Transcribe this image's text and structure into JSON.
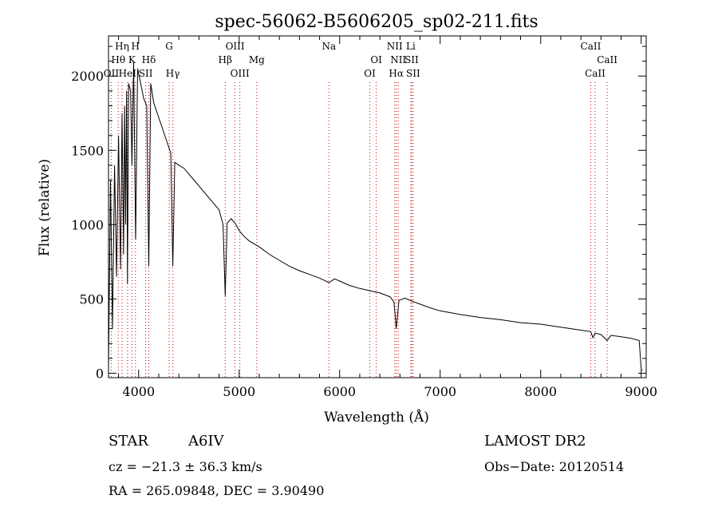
{
  "chart_data": {
    "type": "line",
    "title": "spec-56062-B5606205_sp02-211.fits",
    "xlabel": "Wavelength (Å)",
    "ylabel": "Flux (relative)",
    "xlim": [
      3700,
      9050
    ],
    "ylim": [
      -30,
      2270
    ],
    "xticks": [
      4000,
      5000,
      6000,
      7000,
      8000,
      9000
    ],
    "yticks": [
      0,
      500,
      1000,
      1500,
      2000
    ],
    "grid": false,
    "legend": "none",
    "line_color": "#000000",
    "marker_color": "#cc0000",
    "series": [
      {
        "x": [
          3700,
          3720,
          3740,
          3760,
          3780,
          3800,
          3820,
          3835,
          3850,
          3860,
          3870,
          3880,
          3889,
          3900,
          3920,
          3933,
          3950,
          3970,
          3990,
          4020,
          4050,
          4080,
          4101,
          4120,
          4150,
          4180,
          4210,
          4250,
          4280,
          4320,
          4340,
          4360,
          4400,
          4450,
          4500,
          4550,
          4600,
          4650,
          4700,
          4750,
          4800,
          4840,
          4861,
          4880,
          4920,
          4960,
          5000,
          5050,
          5100,
          5200,
          5300,
          5400,
          5500,
          5600,
          5700,
          5800,
          5893,
          5950,
          6000,
          6100,
          6200,
          6300,
          6400,
          6500,
          6540,
          6563,
          6590,
          6650,
          6700,
          6800,
          6900,
          7000,
          7200,
          7400,
          7600,
          7800,
          8000,
          8200,
          8400,
          8498,
          8520,
          8542,
          8600,
          8662,
          8700,
          8800,
          8900,
          8980,
          9000,
          9010
        ],
        "y": [
          40,
          1300,
          300,
          1400,
          650,
          1600,
          700,
          1750,
          800,
          1800,
          1000,
          1900,
          600,
          1950,
          1900,
          1400,
          2100,
          900,
          2050,
          1950,
          1850,
          1800,
          720,
          1950,
          1820,
          1760,
          1700,
          1620,
          1560,
          1480,
          720,
          1420,
          1400,
          1380,
          1340,
          1300,
          1260,
          1220,
          1180,
          1140,
          1100,
          1000,
          520,
          1010,
          1040,
          1010,
          960,
          920,
          890,
          850,
          800,
          760,
          720,
          690,
          665,
          640,
          610,
          635,
          620,
          590,
          570,
          555,
          540,
          515,
          480,
          300,
          490,
          505,
          490,
          465,
          440,
          420,
          395,
          375,
          360,
          340,
          330,
          310,
          290,
          280,
          240,
          270,
          260,
          220,
          255,
          245,
          235,
          220,
          30,
          20
        ]
      }
    ],
    "spectral_lines": [
      {
        "label": "Hη",
        "wavelength": 3835,
        "row": 1
      },
      {
        "label": "H",
        "wavelength": 3968,
        "row": 1
      },
      {
        "label": "Hθ",
        "wavelength": 3797,
        "row": 2
      },
      {
        "label": "K",
        "wavelength": 3933,
        "row": 2
      },
      {
        "label": "Hδ",
        "wavelength": 4101,
        "row": 2
      },
      {
        "label": "OII",
        "wavelength": 3727,
        "row": 3
      },
      {
        "label": "HeI",
        "wavelength": 3889,
        "row": 3
      },
      {
        "label": "SII",
        "wavelength": 4070,
        "row": 3
      },
      {
        "label": "G",
        "wavelength": 4304,
        "row": 1
      },
      {
        "label": "Hγ",
        "wavelength": 4340,
        "row": 3
      },
      {
        "label": "OIII",
        "wavelength": 4959,
        "row": 1
      },
      {
        "label": "Hβ",
        "wavelength": 4861,
        "row": 2
      },
      {
        "label": "OIII",
        "wavelength": 5007,
        "row": 3
      },
      {
        "label": "Mg",
        "wavelength": 5175,
        "row": 2
      },
      {
        "label": "Na",
        "wavelength": 5893,
        "row": 1
      },
      {
        "label": "OI",
        "wavelength": 6364,
        "row": 2
      },
      {
        "label": "OI",
        "wavelength": 6300,
        "row": 3
      },
      {
        "label": "NII",
        "wavelength": 6548,
        "row": 1
      },
      {
        "label": "Li",
        "wavelength": 6708,
        "row": 1
      },
      {
        "label": "NII",
        "wavelength": 6583,
        "row": 2
      },
      {
        "label": "SII",
        "wavelength": 6716,
        "row": 2
      },
      {
        "label": "Hα",
        "wavelength": 6563,
        "row": 3
      },
      {
        "label": "SII",
        "wavelength": 6731,
        "row": 3
      },
      {
        "label": "CaII",
        "wavelength": 8498,
        "row": 1
      },
      {
        "label": "CaII",
        "wavelength": 8662,
        "row": 2
      },
      {
        "label": "CaII",
        "wavelength": 8542,
        "row": 3
      }
    ]
  },
  "info": {
    "object_class": "STAR",
    "subclass": "A6IV",
    "cz": "cz = −21.3 ± 36.3 km/s",
    "radec": "RA = 265.09848, DEC =   3.90490",
    "survey": "LAMOST DR2",
    "obs_date": "Obs−Date: 20120514"
  }
}
